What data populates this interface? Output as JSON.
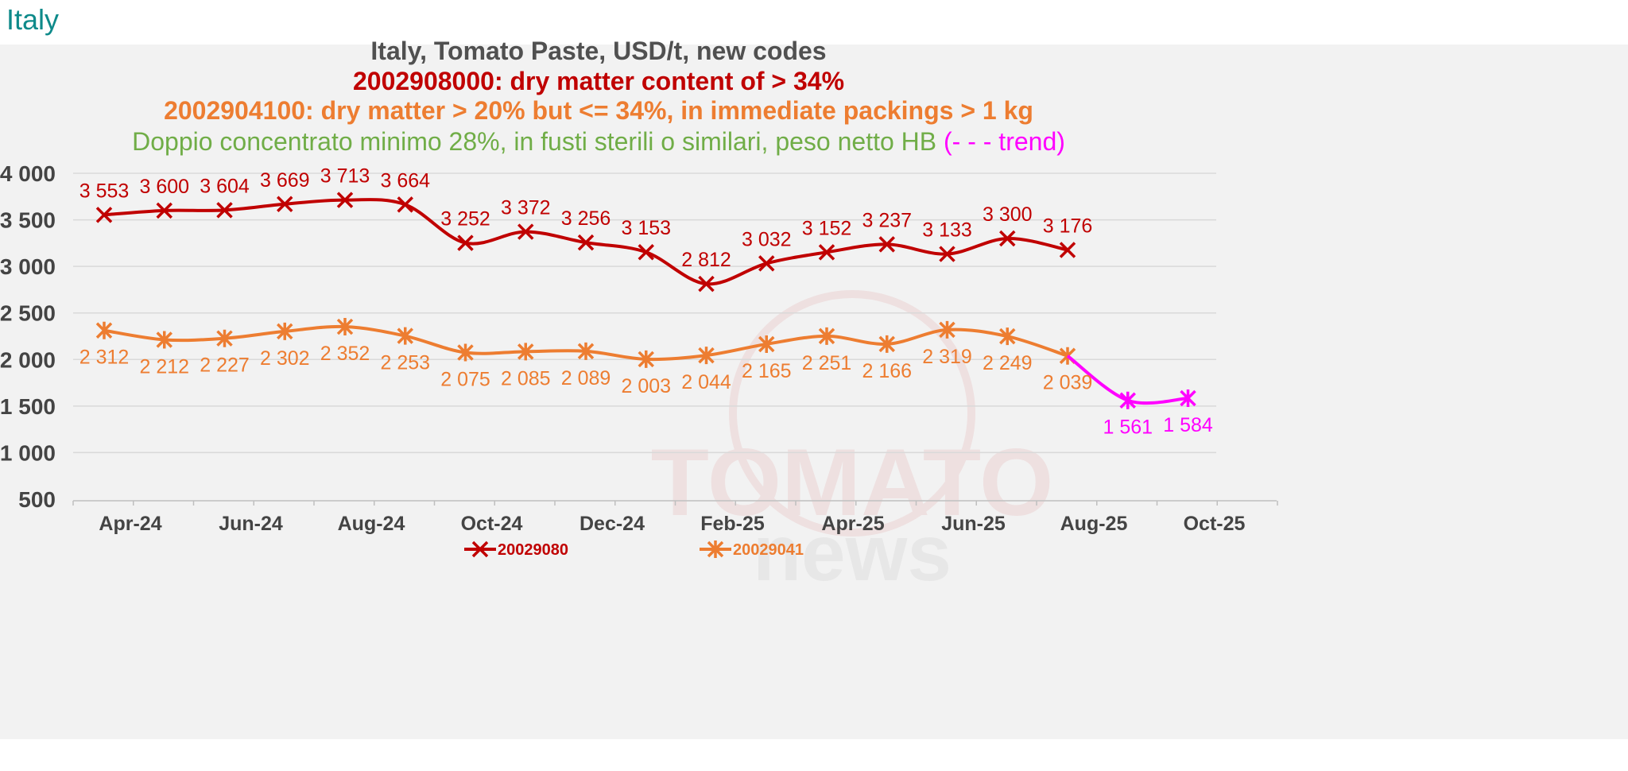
{
  "page_label": "Italy",
  "chart_data": {
    "type": "line",
    "title_lines": [
      {
        "text": "Italy, Tomato Paste, USD/t, new codes",
        "color": "#505050",
        "bold": true
      },
      {
        "text": "2002908000: dry matter content of > 34%",
        "color": "#c00000",
        "bold": true
      },
      {
        "text": "2002904100:  dry matter > 20% but <= 34%, in immediate packings  > 1 kg",
        "color": "#ed7d31",
        "bold": true
      }
    ],
    "subtitle": {
      "text": "Doppio concentrato minimo 28%, in fusti sterili o similari, peso netto HB ",
      "color": "#70ad47"
    },
    "subtitle_trend": {
      "text": "(- - - trend)",
      "color": "#ff00ff"
    },
    "x_ticks": [
      "Apr-24",
      "Jun-24",
      "Aug-24",
      "Oct-24",
      "Dec-24",
      "Feb-25",
      "Apr-25",
      "Jun-25",
      "Aug-25",
      "Oct-25"
    ],
    "y_ticks": [
      "4 000",
      "3 500",
      "3 000",
      "2 500",
      "2 000",
      "1 500",
      "1 000",
      "500"
    ],
    "ylim": [
      500,
      4000
    ],
    "grid": true,
    "legend_position": "bottom",
    "series": [
      {
        "name": "20029080",
        "color": "#c00000",
        "marker": "x",
        "values": [
          3553,
          3600,
          3604,
          3669,
          3713,
          3664,
          3252,
          3372,
          3256,
          3153,
          2812,
          3032,
          3152,
          3237,
          3133,
          3300,
          3176
        ],
        "labels": [
          "3 553",
          "3 600",
          "3 604",
          "3 669",
          "3 713",
          "3 664",
          "3 252",
          "3 372",
          "3 256",
          "3 153",
          "2 812",
          "3 032",
          "3 152",
          "3 237",
          "3 133",
          "3 300",
          "3 176"
        ]
      },
      {
        "name": "20029041",
        "color": "#ed7d31",
        "marker": "star",
        "values": [
          2312,
          2212,
          2227,
          2302,
          2352,
          2253,
          2075,
          2085,
          2089,
          2003,
          2044,
          2165,
          2251,
          2166,
          2319,
          2249,
          2039
        ],
        "labels": [
          "2 312",
          "2 212",
          "2 227",
          "2 302",
          "2 352",
          "2 253",
          "2 075",
          "2 085",
          "2 089",
          "2 003",
          "2 044",
          "2 165",
          "2 251",
          "2 166",
          "2 319",
          "2 249",
          "2 039"
        ]
      },
      {
        "color": "#ff00ff",
        "marker": "star",
        "start_index": 16,
        "values": [
          2039,
          1561,
          1584
        ],
        "labels": [
          "",
          "1 561",
          "1 584"
        ]
      }
    ]
  },
  "watermark": {
    "line1": "TOMATO",
    "line2": "news"
  }
}
